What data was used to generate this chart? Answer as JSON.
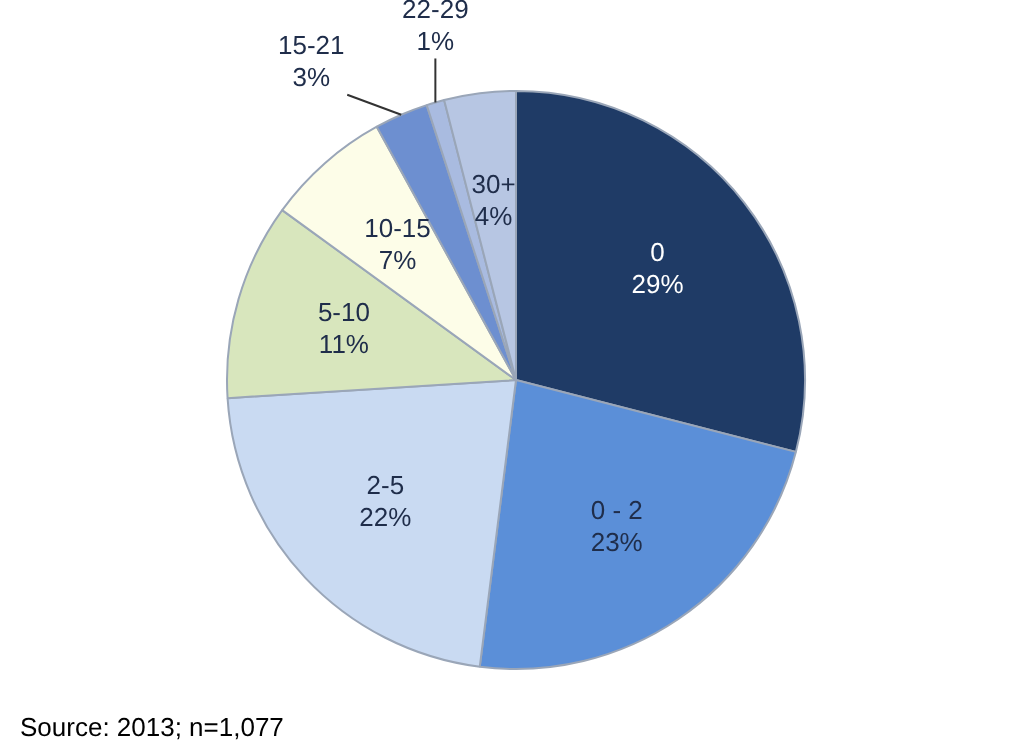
{
  "chart_data": {
    "type": "pie",
    "categories": [
      "0",
      "0 - 2",
      "2-5",
      "5-10",
      "10-15",
      "15-21",
      "22-29",
      "30+"
    ],
    "values": [
      29,
      23,
      22,
      11,
      7,
      3,
      1,
      4
    ],
    "value_labels": [
      "29%",
      "23%",
      "22%",
      "11%",
      "7%",
      "3%",
      "1%",
      "4%"
    ],
    "colors": [
      "#1f3b66",
      "#5b8fd8",
      "#c9daf2",
      "#d8e6bd",
      "#fdfde8",
      "#6d8fd0",
      "#a9bbe0",
      "#b7c6e3"
    ],
    "legend": false,
    "annotations": [
      "Source: 2013; n=1,077"
    ]
  }
}
